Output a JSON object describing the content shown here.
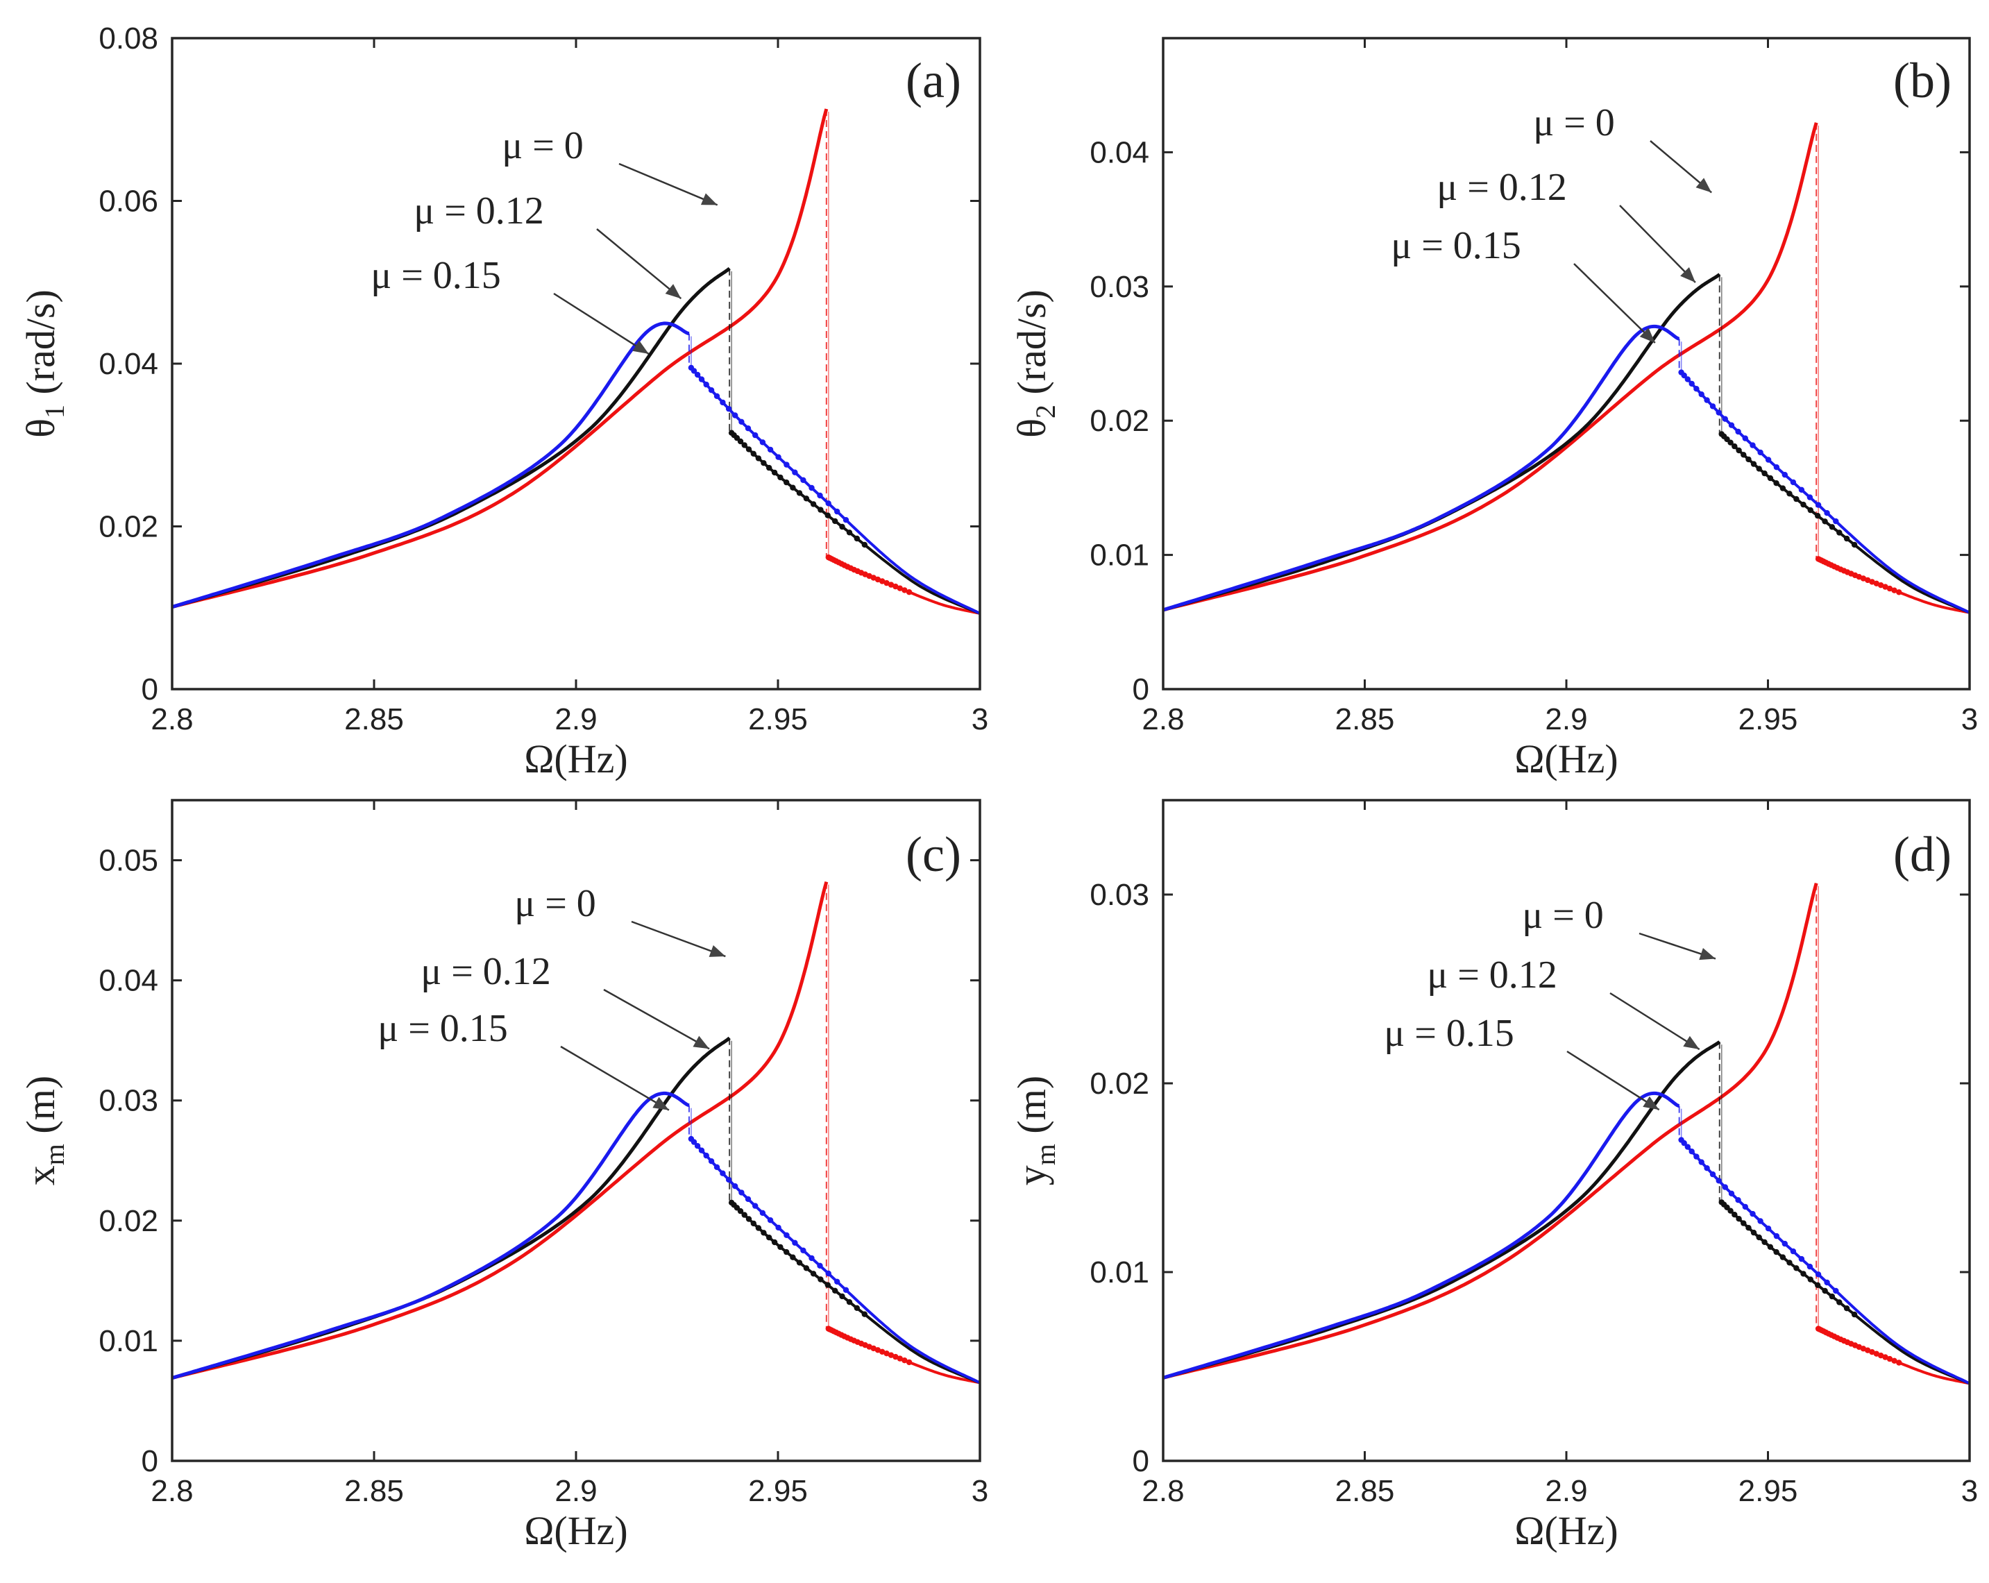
{
  "colors": {
    "mu_0": "#ee1111",
    "mu_012": "#111111",
    "mu_015": "#1a1aee",
    "axes": "#262626"
  },
  "chart_data": [
    {
      "id": "a",
      "type": "line",
      "panel_label": "(a)",
      "xlabel": "Ω(Hz)",
      "ylabel_main": "θ",
      "ylabel_sub": "1",
      "ylabel_unit": " (rad/s)",
      "xlim": [
        2.8,
        3.0
      ],
      "ylim": [
        0,
        0.08
      ],
      "xticks": [
        2.8,
        2.85,
        2.9,
        2.95,
        3.0
      ],
      "xtick_labels": [
        "2.8",
        "2.85",
        "2.9",
        "2.95",
        "3"
      ],
      "yticks": [
        0,
        0.02,
        0.04,
        0.06,
        0.08
      ],
      "ytick_labels": [
        "0",
        "0.02",
        "0.04",
        "0.06",
        "0.08"
      ],
      "series": [
        {
          "name": "μ = 0",
          "mu": 0,
          "color_key": "mu_0",
          "start": 0.0101,
          "ctrl": [
            0.0165,
            0.024,
            0.039,
            0.05
          ],
          "peak_x": 2.962,
          "peak_y": 0.0713,
          "jump_y": 0.0162,
          "end": 0.0093
        },
        {
          "name": "μ = 0.12",
          "mu": 0.12,
          "color_key": "mu_012",
          "start": 0.0101,
          "ctrl": [
            0.0162,
            0.022,
            0.032,
            0.047
          ],
          "peak_x": 2.938,
          "peak_y": 0.0517,
          "jump_y": 0.0315,
          "end": 0.0093
        },
        {
          "name": "μ = 0.15",
          "mu": 0.15,
          "color_key": "mu_015",
          "start": 0.0101,
          "ctrl": [
            0.016,
            0.021,
            0.03,
            0.044
          ],
          "peak_x": 2.928,
          "peak_y": 0.0437,
          "jump_y": 0.0395,
          "end": 0.0093
        }
      ],
      "annotations": [
        {
          "text": "μ = 0",
          "tip": [
            2.935,
            0.0595
          ],
          "series": "μ = 0"
        },
        {
          "text": "μ = 0.12",
          "tip": [
            2.926,
            0.048
          ],
          "series": "μ = 0.12"
        },
        {
          "text": "μ = 0.15",
          "tip": [
            2.918,
            0.0412
          ],
          "series": "μ = 0.15"
        }
      ]
    },
    {
      "id": "b",
      "type": "line",
      "panel_label": "(b)",
      "xlabel": "Ω(Hz)",
      "ylabel_main": "θ",
      "ylabel_sub": "2",
      "ylabel_unit": " (rad/s)",
      "xlim": [
        2.8,
        3.0
      ],
      "ylim": [
        0,
        0.0485
      ],
      "xticks": [
        2.8,
        2.85,
        2.9,
        2.95,
        3.0
      ],
      "xtick_labels": [
        "2.8",
        "2.85",
        "2.9",
        "2.95",
        "3"
      ],
      "yticks": [
        0,
        0.01,
        0.02,
        0.03,
        0.04
      ],
      "ytick_labels": [
        "0",
        "0.01",
        "0.02",
        "0.03",
        "0.04"
      ],
      "series": [
        {
          "name": "μ = 0",
          "mu": 0,
          "color_key": "mu_0",
          "start": 0.0059,
          "ctrl": [
            0.0098,
            0.0145,
            0.0235,
            0.03
          ],
          "peak_x": 2.962,
          "peak_y": 0.0422,
          "jump_y": 0.0097,
          "end": 0.0057
        },
        {
          "name": "μ = 0.12",
          "mu": 0.12,
          "color_key": "mu_012",
          "start": 0.0059,
          "ctrl": [
            0.0096,
            0.0132,
            0.0192,
            0.0282
          ],
          "peak_x": 2.938,
          "peak_y": 0.0309,
          "jump_y": 0.019,
          "end": 0.0057
        },
        {
          "name": "μ = 0.15",
          "mu": 0.15,
          "color_key": "mu_015",
          "start": 0.0059,
          "ctrl": [
            0.0095,
            0.0125,
            0.018,
            0.0265
          ],
          "peak_x": 2.928,
          "peak_y": 0.0261,
          "jump_y": 0.0236,
          "end": 0.0057
        }
      ],
      "annotations": [
        {
          "text": "μ = 0",
          "tip": [
            2.936,
            0.037
          ],
          "series": "μ = 0"
        },
        {
          "text": "μ = 0.12",
          "tip": [
            2.932,
            0.0303
          ],
          "series": "μ = 0.12"
        },
        {
          "text": "μ = 0.15",
          "tip": [
            2.922,
            0.0258
          ],
          "series": "μ = 0.15"
        }
      ]
    },
    {
      "id": "c",
      "type": "line",
      "panel_label": "(c)",
      "xlabel": "Ω(Hz)",
      "ylabel_main": "x",
      "ylabel_sub": "m",
      "ylabel_unit": " (m)",
      "xlim": [
        2.8,
        3.0
      ],
      "ylim": [
        0,
        0.055
      ],
      "xticks": [
        2.8,
        2.85,
        2.9,
        2.95,
        3.0
      ],
      "xtick_labels": [
        "2.8",
        "2.85",
        "2.9",
        "2.95",
        "3"
      ],
      "yticks": [
        0,
        0.01,
        0.02,
        0.03,
        0.04,
        0.05
      ],
      "ytick_labels": [
        "0",
        "0.01",
        "0.02",
        "0.03",
        "0.04",
        "0.05"
      ],
      "series": [
        {
          "name": "μ = 0",
          "mu": 0,
          "color_key": "mu_0",
          "start": 0.0069,
          "ctrl": [
            0.0112,
            0.0165,
            0.0265,
            0.034
          ],
          "peak_x": 2.962,
          "peak_y": 0.0482,
          "jump_y": 0.011,
          "end": 0.0065
        },
        {
          "name": "μ = 0.12",
          "mu": 0.12,
          "color_key": "mu_012",
          "start": 0.0069,
          "ctrl": [
            0.011,
            0.015,
            0.0218,
            0.032
          ],
          "peak_x": 2.938,
          "peak_y": 0.0352,
          "jump_y": 0.0215,
          "end": 0.0065
        },
        {
          "name": "μ = 0.15",
          "mu": 0.15,
          "color_key": "mu_015",
          "start": 0.0069,
          "ctrl": [
            0.0108,
            0.0142,
            0.0205,
            0.03
          ],
          "peak_x": 2.928,
          "peak_y": 0.0296,
          "jump_y": 0.0268,
          "end": 0.0065
        }
      ],
      "annotations": [
        {
          "text": "μ = 0",
          "tip": [
            2.937,
            0.042
          ],
          "series": "μ = 0"
        },
        {
          "text": "μ = 0.12",
          "tip": [
            2.933,
            0.0343
          ],
          "series": "μ = 0.12"
        },
        {
          "text": "μ = 0.15",
          "tip": [
            2.923,
            0.0292
          ],
          "series": "μ = 0.15"
        }
      ]
    },
    {
      "id": "d",
      "type": "line",
      "panel_label": "(d)",
      "xlabel": "Ω(Hz)",
      "ylabel_main": "y",
      "ylabel_sub": "m",
      "ylabel_unit": " (m)",
      "xlim": [
        2.8,
        3.0
      ],
      "ylim": [
        0,
        0.035
      ],
      "xticks": [
        2.8,
        2.85,
        2.9,
        2.95,
        3.0
      ],
      "xtick_labels": [
        "2.8",
        "2.85",
        "2.9",
        "2.95",
        "3"
      ],
      "yticks": [
        0,
        0.01,
        0.02,
        0.03
      ],
      "ytick_labels": [
        "0",
        "0.01",
        "0.02",
        "0.03"
      ],
      "series": [
        {
          "name": "μ = 0",
          "mu": 0,
          "color_key": "mu_0",
          "start": 0.0044,
          "ctrl": [
            0.0071,
            0.0105,
            0.0168,
            0.0216
          ],
          "peak_x": 2.962,
          "peak_y": 0.0306,
          "jump_y": 0.007,
          "end": 0.0041
        },
        {
          "name": "μ = 0.12",
          "mu": 0.12,
          "color_key": "mu_012",
          "start": 0.0044,
          "ctrl": [
            0.007,
            0.0095,
            0.0139,
            0.0203
          ],
          "peak_x": 2.938,
          "peak_y": 0.0222,
          "jump_y": 0.0137,
          "end": 0.0041
        },
        {
          "name": "μ = 0.15",
          "mu": 0.15,
          "color_key": "mu_015",
          "start": 0.0044,
          "ctrl": [
            0.0069,
            0.0091,
            0.013,
            0.0191
          ],
          "peak_x": 2.928,
          "peak_y": 0.0188,
          "jump_y": 0.017,
          "end": 0.0041
        }
      ],
      "annotations": [
        {
          "text": "μ = 0",
          "tip": [
            2.937,
            0.0266
          ],
          "series": "μ = 0"
        },
        {
          "text": "μ = 0.12",
          "tip": [
            2.933,
            0.0218
          ],
          "series": "μ = 0.12"
        },
        {
          "text": "μ = 0.15",
          "tip": [
            2.923,
            0.0186
          ],
          "series": "μ = 0.15"
        }
      ]
    }
  ]
}
